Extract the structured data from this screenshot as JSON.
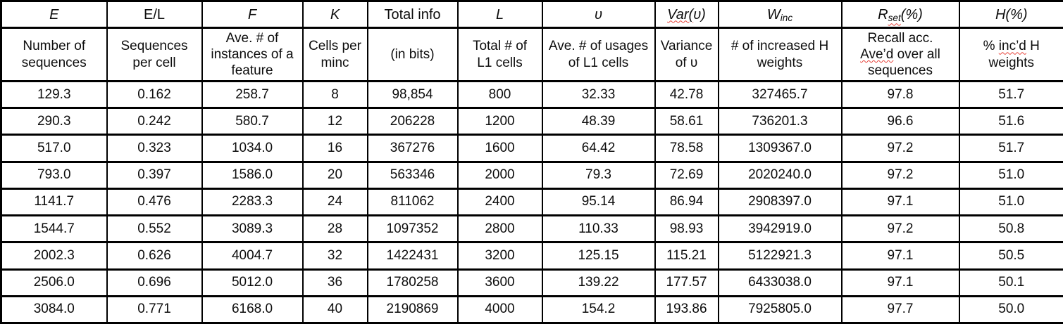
{
  "table": {
    "headers": {
      "e": "E",
      "el": "E/L",
      "f": "F",
      "k": "K",
      "total_info": "Total info",
      "l": "L",
      "upsilon": "υ",
      "var_part1": "Var(",
      "var_part2": "υ)",
      "w_base": "W",
      "w_sub": "inc",
      "r_base": "R",
      "r_sub": "set",
      "r_suffix": "(%)",
      "h": "H(%)"
    },
    "subheaders": {
      "e1": "Number of",
      "e2": "sequences",
      "el1": "Sequences",
      "el2": "per cell",
      "f1": "Ave. # of",
      "f2": "instances of a",
      "f3": "feature",
      "k1": "Cells per",
      "k2": "minc",
      "ti1": "(in bits)",
      "l1": "Total # of",
      "l2": "L1 cells",
      "u1": "Ave. # of usages",
      "u2": "of L1 cells",
      "v1": "Variance",
      "v2": "of υ",
      "w1": "# of increased H",
      "w2": "weights",
      "r1": "Recall acc.",
      "r2a": "Ave’d",
      "r2b": " over all",
      "r3": "sequences",
      "h1a": "% ",
      "h1b": "inc’d",
      "h1c": " H",
      "h2": "weights"
    },
    "squiggle_color": "#e8453c",
    "rows": [
      [
        "129.3",
        "0.162",
        "258.7",
        "8",
        "98,854",
        "800",
        "32.33",
        "42.78",
        "327465.7",
        "97.8",
        "51.7"
      ],
      [
        "290.3",
        "0.242",
        "580.7",
        "12",
        "206228",
        "1200",
        "48.39",
        "58.61",
        "736201.3",
        "96.6",
        "51.6"
      ],
      [
        "517.0",
        "0.323",
        "1034.0",
        "16",
        "367276",
        "1600",
        "64.42",
        "78.58",
        "1309367.0",
        "97.2",
        "51.7"
      ],
      [
        "793.0",
        "0.397",
        "1586.0",
        "20",
        "563346",
        "2000",
        "79.3",
        "72.69",
        "2020240.0",
        "97.2",
        "51.0"
      ],
      [
        "1141.7",
        "0.476",
        "2283.3",
        "24",
        "811062",
        "2400",
        "95.14",
        "86.94",
        "2908397.0",
        "97.1",
        "51.0"
      ],
      [
        "1544.7",
        "0.552",
        "3089.3",
        "28",
        "1097352",
        "2800",
        "110.33",
        "98.93",
        "3942919.0",
        "97.2",
        "50.8"
      ],
      [
        "2002.3",
        "0.626",
        "4004.7",
        "32",
        "1422431",
        "3200",
        "125.15",
        "115.21",
        "5122921.3",
        "97.1",
        "50.5"
      ],
      [
        "2506.0",
        "0.696",
        "5012.0",
        "36",
        "1780258",
        "3600",
        "139.22",
        "177.57",
        "6433038.0",
        "97.1",
        "50.1"
      ],
      [
        "3084.0",
        "0.771",
        "6168.0",
        "40",
        "2190869",
        "4000",
        "154.2",
        "193.86",
        "7925805.0",
        "97.7",
        "50.0"
      ]
    ]
  }
}
